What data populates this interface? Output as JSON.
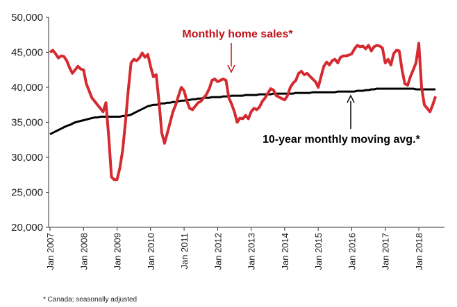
{
  "chart_data": {
    "type": "line",
    "annotations": [
      "Monthly home sales*",
      "10-year monthly moving avg.*"
    ],
    "footnote": "* Canada; seasonally adjusted",
    "categories": [
      "Jan 2007",
      null,
      null,
      null,
      null,
      null,
      null,
      null,
      null,
      null,
      null,
      null,
      "Jan 2008",
      null,
      null,
      null,
      null,
      null,
      null,
      null,
      null,
      null,
      null,
      null,
      "Jan 2009",
      null,
      null,
      null,
      null,
      null,
      null,
      null,
      null,
      null,
      null,
      null,
      "Jan 2010",
      null,
      null,
      null,
      null,
      null,
      null,
      null,
      null,
      null,
      null,
      null,
      "Jan 2011",
      null,
      null,
      null,
      null,
      null,
      null,
      null,
      null,
      null,
      null,
      null,
      "Jan 2012",
      null,
      null,
      null,
      null,
      null,
      null,
      null,
      null,
      null,
      null,
      null,
      "Jan 2013",
      null,
      null,
      null,
      null,
      null,
      null,
      null,
      null,
      null,
      null,
      null,
      "Jan 2014",
      null,
      null,
      null,
      null,
      null,
      null,
      null,
      null,
      null,
      null,
      null,
      "Jan 2015",
      null,
      null,
      null,
      null,
      null,
      null,
      null,
      null,
      null,
      null,
      null,
      "Jan 2016",
      null,
      null,
      null,
      null,
      null,
      null,
      null,
      null,
      null,
      null,
      null,
      "Jan 2017",
      null,
      null,
      null,
      null,
      null,
      null,
      null,
      null,
      null,
      null,
      null,
      "Jan 2018",
      null,
      null,
      null,
      null,
      null,
      null
    ],
    "series": [
      {
        "name": "Monthly home sales*",
        "color": "#d42a30",
        "values": [
          45000,
          45300,
          44800,
          44200,
          44500,
          44400,
          43800,
          42800,
          42000,
          42500,
          43000,
          42600,
          42500,
          40500,
          39500,
          38500,
          38000,
          37500,
          37000,
          36500,
          37800,
          33000,
          27200,
          26800,
          26800,
          28500,
          31000,
          35000,
          39500,
          43500,
          44000,
          43800,
          44200,
          44900,
          44300,
          44700,
          43000,
          41500,
          41800,
          38000,
          33500,
          32000,
          33500,
          35000,
          36500,
          37500,
          38800,
          40000,
          39500,
          38000,
          37000,
          36800,
          37300,
          37800,
          38000,
          38500,
          39000,
          39800,
          41000,
          41200,
          40800,
          41000,
          41200,
          41000,
          38500,
          37600,
          36500,
          35000,
          35600,
          35500,
          36000,
          35500,
          36500,
          37000,
          36800,
          37200,
          38000,
          38500,
          39200,
          39800,
          39600,
          38800,
          38600,
          38400,
          38200,
          38800,
          40000,
          40600,
          41000,
          42000,
          42300,
          41800,
          42000,
          41600,
          41200,
          40800,
          40000,
          41500,
          43000,
          43600,
          43200,
          43800,
          44000,
          43500,
          44300,
          44500,
          44500,
          44600,
          44800,
          45500,
          46000,
          45800,
          45900,
          45500,
          46000,
          45200,
          45800,
          46000,
          45900,
          45600,
          43500,
          44000,
          43200,
          44800,
          45300,
          45200,
          42500,
          40500,
          40300,
          41500,
          42500,
          43500,
          46300,
          40000,
          37500,
          37000,
          36500,
          37500,
          38700
        ]
      },
      {
        "name": "10-year monthly moving avg.*",
        "color": "#000000",
        "values": [
          33300,
          33500,
          33700,
          33900,
          34100,
          34300,
          34500,
          34600,
          34800,
          35000,
          35100,
          35200,
          35300,
          35400,
          35500,
          35600,
          35700,
          35700,
          35800,
          35800,
          35800,
          35800,
          35800,
          35800,
          35800,
          35800,
          35900,
          35900,
          36000,
          36100,
          36300,
          36500,
          36700,
          36900,
          37100,
          37300,
          37400,
          37500,
          37500,
          37600,
          37700,
          37700,
          37800,
          37800,
          37900,
          37900,
          38000,
          38100,
          38100,
          38200,
          38200,
          38300,
          38300,
          38400,
          38400,
          38500,
          38500,
          38500,
          38600,
          38600,
          38600,
          38600,
          38700,
          38700,
          38700,
          38800,
          38800,
          38800,
          38800,
          38800,
          38900,
          38900,
          38900,
          38900,
          38900,
          39000,
          39000,
          39000,
          39000,
          39000,
          39100,
          39100,
          39100,
          39100,
          39100,
          39100,
          39100,
          39100,
          39200,
          39200,
          39200,
          39200,
          39200,
          39200,
          39300,
          39300,
          39300,
          39300,
          39300,
          39300,
          39300,
          39300,
          39300,
          39400,
          39400,
          39400,
          39400,
          39400,
          39400,
          39400,
          39500,
          39500,
          39500,
          39600,
          39600,
          39700,
          39700,
          39800,
          39800,
          39800,
          39800,
          39800,
          39800,
          39800,
          39800,
          39800,
          39800,
          39800,
          39800,
          39800,
          39800,
          39700,
          39700,
          39700,
          39700,
          39700,
          39700,
          39700,
          39700
        ]
      }
    ],
    "ylim": [
      20000,
      50000
    ],
    "yticks": [
      {
        "value": 20000,
        "label": "20,000"
      },
      {
        "value": 25000,
        "label": "25,000"
      },
      {
        "value": 30000,
        "label": "30,000"
      },
      {
        "value": 35000,
        "label": "35,000"
      },
      {
        "value": 40000,
        "label": "40,000"
      },
      {
        "value": 45000,
        "label": "45,000"
      },
      {
        "value": 50000,
        "label": "50,000"
      }
    ],
    "grid": false
  }
}
